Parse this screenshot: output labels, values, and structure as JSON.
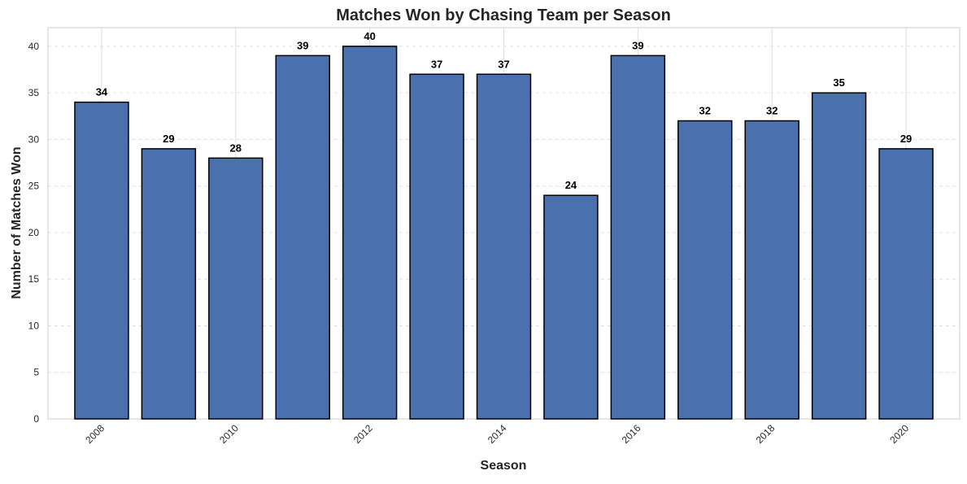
{
  "chart_data": {
    "type": "bar",
    "title": "Matches Won by Chasing Team per Season",
    "xlabel": "Season",
    "ylabel": "Number of Matches Won",
    "categories": [
      "2008",
      "2009",
      "2010",
      "2011",
      "2012",
      "2013",
      "2014",
      "2015",
      "2016",
      "2017",
      "2018",
      "2019",
      "2020"
    ],
    "values": [
      34,
      29,
      28,
      39,
      40,
      37,
      37,
      24,
      39,
      32,
      32,
      35,
      29
    ],
    "data_labels": [
      "34",
      "29",
      "28",
      "39",
      "40",
      "37",
      "37",
      "24",
      "39",
      "32",
      "32",
      "35",
      "29"
    ],
    "x_ticks": [
      "2008",
      "2010",
      "2012",
      "2014",
      "2016",
      "2018",
      "2020"
    ],
    "y_ticks": [
      "0",
      "5",
      "10",
      "15",
      "20",
      "25",
      "30",
      "35",
      "40"
    ],
    "ylim": [
      0,
      42
    ],
    "x_range": [
      2007.2,
      2020.8
    ],
    "grid": true,
    "grid_style": "y dashed, x solid at major ticks",
    "colors": {
      "bar_fill": "#4a71ae",
      "bar_edge": "#000000",
      "grid": "#dddddd",
      "axes_edge": "#cccccc",
      "text": "#262626"
    }
  }
}
